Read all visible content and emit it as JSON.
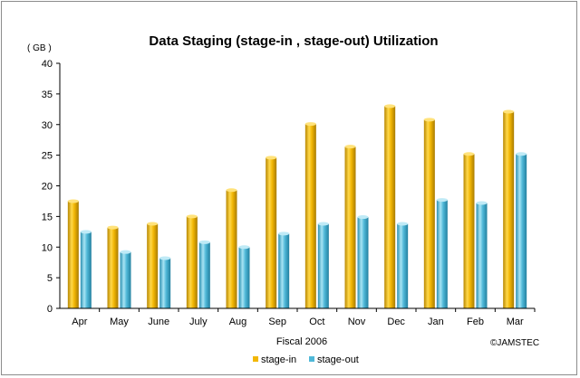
{
  "chart_data": {
    "type": "bar",
    "title": "Data Staging  (stage-in , stage-out) Utilization",
    "y_unit_label": "( GB )",
    "xlabel": "Fiscal 2006",
    "credit": "©JAMSTEC",
    "categories": [
      "Apr",
      "May",
      "June",
      "July",
      "Aug",
      "Sep",
      "Oct",
      "Nov",
      "Dec",
      "Jan",
      "Feb",
      "Mar"
    ],
    "ylim": [
      0,
      40
    ],
    "yticks": [
      "0",
      "5",
      "10",
      "15",
      "20",
      "25",
      "30",
      "35",
      "40"
    ],
    "grid": false,
    "legend_position": "bottom",
    "series": [
      {
        "name": "stage-in",
        "color": "#f2b705",
        "values": [
          17.5,
          13.2,
          13.8,
          15.0,
          19.3,
          24.6,
          30.1,
          26.4,
          33.0,
          30.8,
          25.2,
          32.1
        ]
      },
      {
        "name": "stage-out",
        "color": "#4fb8d8",
        "values": [
          12.5,
          9.2,
          8.2,
          10.8,
          10.0,
          12.2,
          13.8,
          14.9,
          13.8,
          17.7,
          17.2,
          25.2
        ]
      }
    ]
  }
}
